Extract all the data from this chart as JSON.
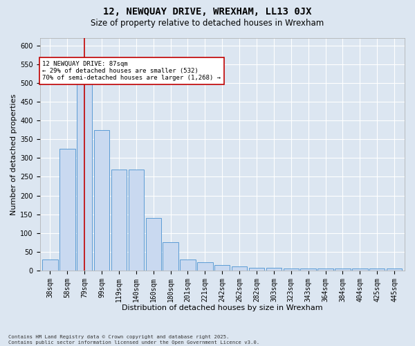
{
  "title_line1": "12, NEWQUAY DRIVE, WREXHAM, LL13 0JX",
  "title_line2": "Size of property relative to detached houses in Wrexham",
  "xlabel": "Distribution of detached houses by size in Wrexham",
  "ylabel": "Number of detached properties",
  "categories": [
    "38sqm",
    "58sqm",
    "79sqm",
    "99sqm",
    "119sqm",
    "140sqm",
    "160sqm",
    "180sqm",
    "201sqm",
    "221sqm",
    "242sqm",
    "262sqm",
    "282sqm",
    "303sqm",
    "323sqm",
    "343sqm",
    "364sqm",
    "384sqm",
    "404sqm",
    "425sqm",
    "445sqm"
  ],
  "values": [
    30,
    325,
    510,
    375,
    270,
    270,
    140,
    75,
    30,
    22,
    15,
    10,
    8,
    8,
    5,
    5,
    5,
    5,
    5,
    5,
    5
  ],
  "bar_color": "#c9d9f0",
  "bar_edge_color": "#5b9bd5",
  "vline_x": 2.0,
  "vline_color": "#c00000",
  "annotation_text": "12 NEWQUAY DRIVE: 87sqm\n← 29% of detached houses are smaller (532)\n70% of semi-detached houses are larger (1,268) →",
  "annotation_box_color": "#c00000",
  "ylim_max": 620,
  "yticks": [
    0,
    50,
    100,
    150,
    200,
    250,
    300,
    350,
    400,
    450,
    500,
    550,
    600
  ],
  "bg_color": "#dce6f1",
  "plot_bg_color": "#dce6f1",
  "footer": "Contains HM Land Registry data © Crown copyright and database right 2025.\nContains public sector information licensed under the Open Government Licence v3.0.",
  "title_fontsize": 10,
  "subtitle_fontsize": 8.5,
  "xlabel_fontsize": 8,
  "ylabel_fontsize": 8,
  "tick_fontsize": 7,
  "annotation_fontsize": 6.5
}
